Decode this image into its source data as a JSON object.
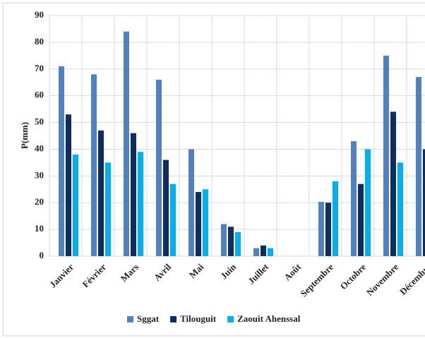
{
  "chart_data": {
    "type": "bar",
    "y_label": "P(mm)",
    "categories": [
      "Janvier",
      "Février",
      "Mars",
      "Avril",
      "Mai",
      "Juin",
      "Juillet",
      "Août",
      "Septembre",
      "Octobre",
      "Novembre",
      "Décembre"
    ],
    "series": [
      {
        "name": "Sggat",
        "color": "#4f81c4",
        "values": [
          71,
          68,
          84,
          66,
          40,
          12,
          3,
          0,
          20.3,
          43,
          75,
          67
        ]
      },
      {
        "name": "Tilouguit",
        "color": "#0f2d62",
        "values": [
          53,
          47,
          46,
          36,
          24,
          11,
          4,
          0,
          20,
          27,
          54,
          40
        ]
      },
      {
        "name": "Zaouit Ahenssal",
        "color": "#00b0f0",
        "values": [
          38,
          35,
          39,
          27,
          25,
          9,
          3,
          0,
          28,
          40,
          35,
          null
        ]
      }
    ],
    "ylim": [
      0,
      90
    ],
    "yticks": [
      0,
      10,
      20,
      30,
      40,
      50,
      60,
      70,
      80,
      90
    ],
    "grid": true
  }
}
